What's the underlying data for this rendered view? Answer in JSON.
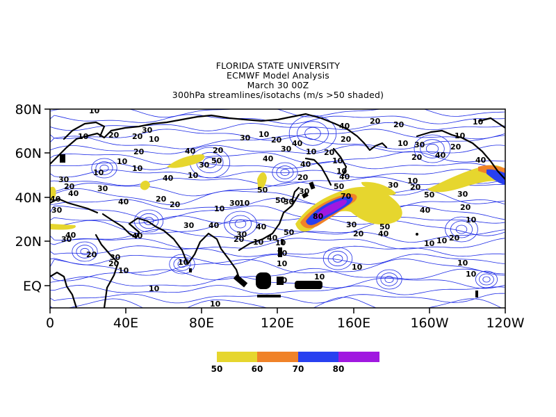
{
  "title": {
    "line1": "FLORIDA STATE UNIVERSITY",
    "line2": "ECMWF Model Analysis",
    "line3": "March 30 00Z",
    "line4": "300hPa streamlines/isotachs (m/s >50 shaded)"
  },
  "axes": {
    "y_ticks": [
      "80N",
      "60N",
      "40N",
      "20N",
      "EQ"
    ],
    "x_ticks": [
      "0",
      "40E",
      "80E",
      "120E",
      "160E",
      "160W",
      "120W"
    ]
  },
  "colorbar": {
    "colors": [
      "#e6d62e",
      "#f08228",
      "#2840f0",
      "#a018e0"
    ],
    "labels": [
      "50",
      "60",
      "70",
      "80"
    ]
  },
  "contour_labels": [
    "10",
    "20",
    "30",
    "40",
    "50",
    "70",
    "80"
  ],
  "colors": {
    "streamline": "#1a28e6",
    "coastline": "#000000",
    "shade_50": "#e6d62e",
    "shade_60": "#f08228",
    "shade_70": "#2840f0",
    "shade_80": "#a018e0"
  }
}
